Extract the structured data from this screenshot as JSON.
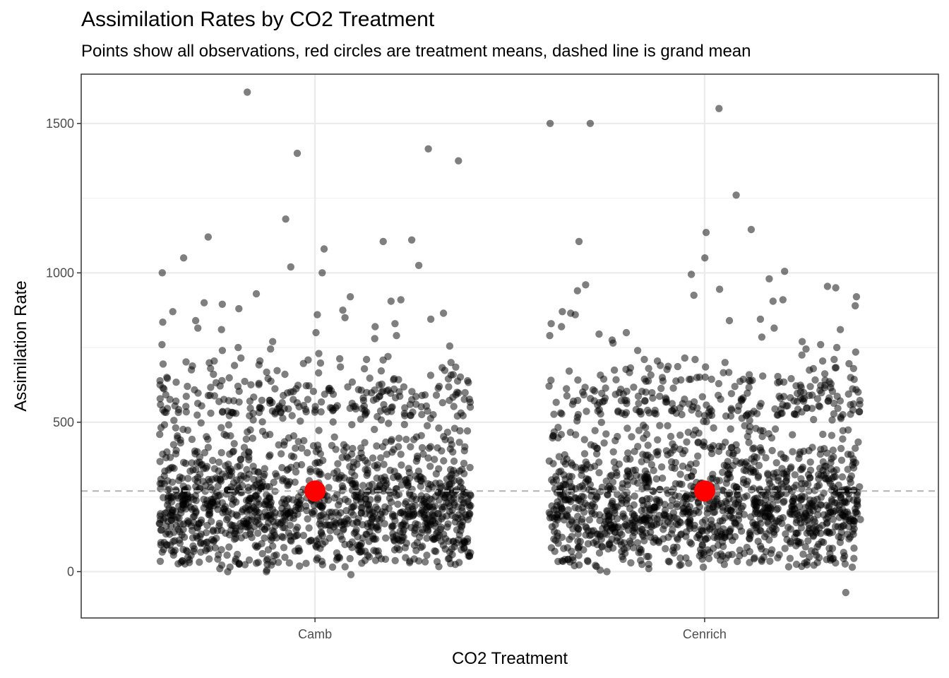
{
  "chart_data": {
    "type": "scatter",
    "title": "Assimilation Rates by CO2 Treatment",
    "subtitle": "Points show all observations, red circles are treatment means, dashed line is grand mean",
    "xlabel": "CO2 Treatment",
    "ylabel": "Assimilation Rate",
    "categories": [
      "Camb",
      "Cenrich"
    ],
    "y_ticks": [
      0,
      500,
      1000,
      1500
    ],
    "y_tick_labels": [
      "0",
      "500",
      "1000",
      "1500"
    ],
    "ylim": [
      -155,
      1665
    ],
    "grid": true,
    "grand_mean": 270,
    "colors": {
      "points": "#000000",
      "points_opacity": 0.5,
      "mean": "#ff0000",
      "grand_mean_line": "#b3b3b3",
      "grid_major": "#ebebeb",
      "grid_minor": "#f2f2f2",
      "panel_border": "#333333"
    },
    "series": [
      {
        "category": "Camb",
        "mean": 270,
        "outliers": [
          1605,
          1415,
          1375,
          1400,
          1180,
          1120,
          1110,
          1105,
          1080,
          1050,
          1025,
          1020,
          1000,
          1000,
          930,
          920,
          910,
          905,
          900,
          895,
          880,
          875,
          870,
          865,
          860,
          850,
          845,
          840,
          835,
          830,
          820,
          815,
          810,
          800,
          790,
          780,
          770,
          760,
          755,
          750,
          745,
          740,
          730,
          720,
          715,
          710,
          705,
          700,
          695,
          690,
          685,
          680
        ],
        "bulk_range": [
          0,
          650
        ],
        "min_points": [
          -10,
          0,
          0,
          5,
          10
        ]
      },
      {
        "category": "Cenrich",
        "mean": 270,
        "outliers": [
          1550,
          1500,
          1500,
          1260,
          1145,
          1135,
          1105,
          1050,
          1005,
          995,
          980,
          960,
          955,
          950,
          945,
          940,
          925,
          920,
          910,
          905,
          890,
          870,
          865,
          860,
          845,
          840,
          830,
          820,
          815,
          810,
          800,
          795,
          790,
          785,
          775,
          770,
          765,
          760,
          750,
          745,
          740,
          735,
          725,
          715,
          710,
          705,
          700,
          690,
          685,
          680
        ],
        "bulk_range": [
          0,
          650
        ],
        "min_points": [
          -70,
          0,
          5,
          10,
          15
        ]
      }
    ]
  }
}
